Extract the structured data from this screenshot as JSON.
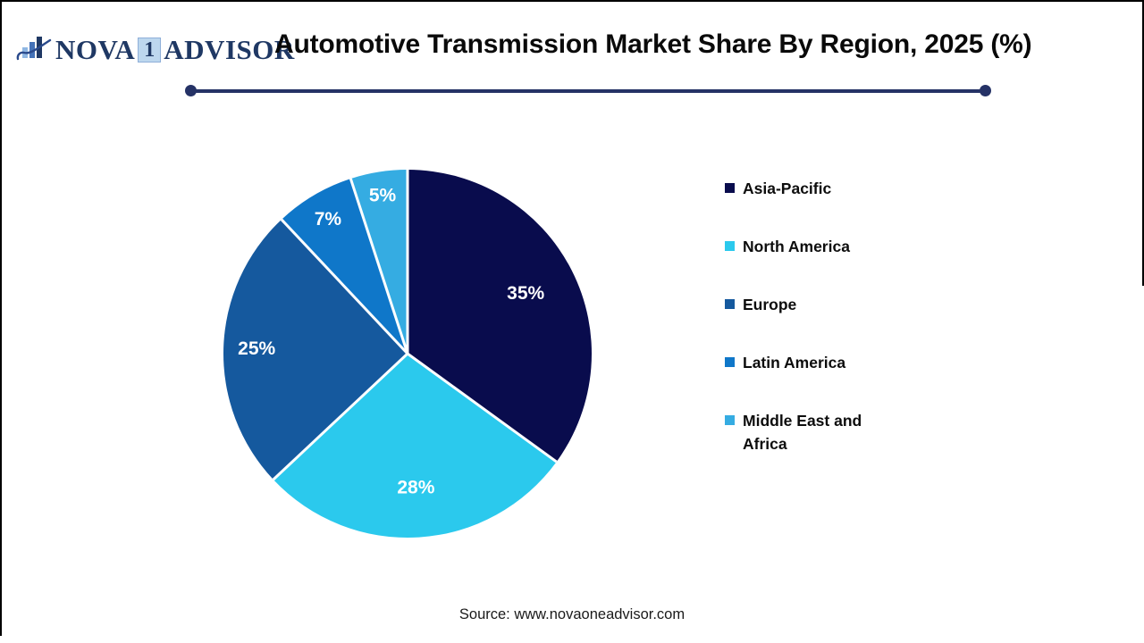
{
  "logo": {
    "word1": "NOVA",
    "boxed_digit": "1",
    "word2": "ADVISOR",
    "icon": "bar-chart-swoosh-icon",
    "navy": "#1F3864",
    "box_bg": "#BDD7EE"
  },
  "header": {
    "title": "Automotive Transmission Market Share By Region, 2025 (%)"
  },
  "chart_data": {
    "type": "pie",
    "title": "Automotive Transmission Market Share By Region, 2025 (%)",
    "unit": "%",
    "start_angle_deg": 0,
    "direction": "clockwise",
    "legend_position": "right",
    "label_color": "#FFFFFF",
    "separator_color": "#FFFFFF",
    "slices": [
      {
        "label": "Asia-Pacific",
        "value": 35,
        "display": "35%",
        "color": "#090C4D",
        "label_r": 0.72
      },
      {
        "label": "North America",
        "value": 28,
        "display": "28%",
        "color": "#2BC9ED",
        "label_r": 0.73
      },
      {
        "label": "Europe",
        "value": 25,
        "display": "25%",
        "color": "#15599E",
        "label_r": 0.82
      },
      {
        "label": "Latin America",
        "value": 7,
        "display": "7%",
        "color": "#0F77C9",
        "label_r": 0.85
      },
      {
        "label": "Middle East and Africa",
        "value": 5,
        "display": "5%",
        "color": "#35ACE2",
        "label_r": 0.87
      }
    ]
  },
  "footer": {
    "source": "Source: www.novaoneadvisor.com"
  },
  "theme": {
    "divider_color": "#253266",
    "title_color": "#0A0A0A",
    "background": "#FFFFFF",
    "border_color": "#000000"
  }
}
